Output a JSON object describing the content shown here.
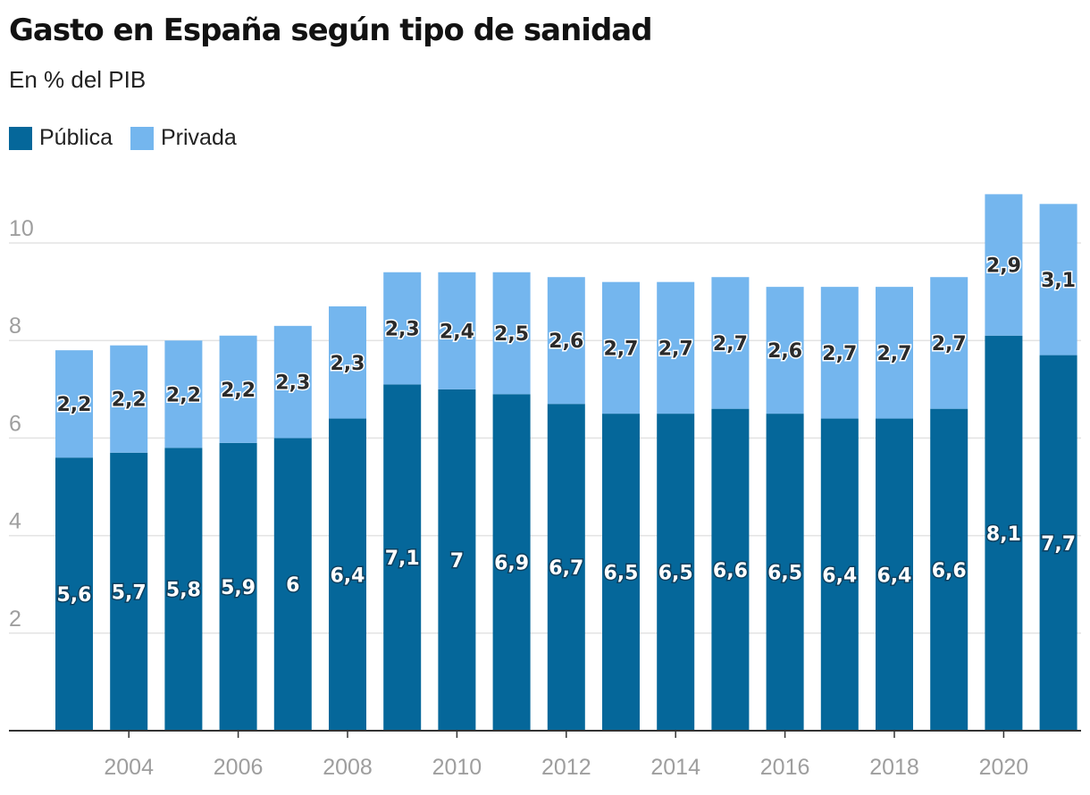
{
  "colors": {
    "publica": "#05679a",
    "privada": "#74b6ee",
    "grid": "#e3e3e3",
    "axis": "#333333",
    "tick": "#9e9e9e",
    "label_dark": "#2b2b2b",
    "label_light": "#ffffff"
  },
  "chart_data": {
    "type": "bar",
    "stacked": true,
    "title": "Gasto en España según tipo de sanidad",
    "subtitle": "En % del PIB",
    "xlabel": "",
    "ylabel": "",
    "ylim": [
      0,
      11
    ],
    "yticks": [
      2,
      4,
      6,
      8,
      10
    ],
    "xticks": [
      "2004",
      "2006",
      "2008",
      "2010",
      "2012",
      "2014",
      "2016",
      "2018",
      "2020"
    ],
    "legend_position": "top-left",
    "categories": [
      "2003",
      "2004",
      "2005",
      "2006",
      "2007",
      "2008",
      "2009",
      "2010",
      "2011",
      "2012",
      "2013",
      "2014",
      "2015",
      "2016",
      "2017",
      "2018",
      "2019",
      "2020",
      "2021"
    ],
    "series": [
      {
        "name": "Pública",
        "values": [
          5.6,
          5.7,
          5.8,
          5.9,
          6,
          6.4,
          7.1,
          7,
          6.9,
          6.7,
          6.5,
          6.5,
          6.6,
          6.5,
          6.4,
          6.4,
          6.6,
          8.1,
          7.7
        ],
        "labels": [
          "5,6",
          "5,7",
          "5,8",
          "5,9",
          "6",
          "6,4",
          "7,1",
          "7",
          "6,9",
          "6,7",
          "6,5",
          "6,5",
          "6,6",
          "6,5",
          "6,4",
          "6,4",
          "6,6",
          "8,1",
          "7,7"
        ]
      },
      {
        "name": "Privada",
        "values": [
          2.2,
          2.2,
          2.2,
          2.2,
          2.3,
          2.3,
          2.3,
          2.4,
          2.5,
          2.6,
          2.7,
          2.7,
          2.7,
          2.6,
          2.7,
          2.7,
          2.7,
          2.9,
          3.1
        ],
        "labels": [
          "2,2",
          "2,2",
          "2,2",
          "2,2",
          "2,3",
          "2,3",
          "2,3",
          "2,4",
          "2,5",
          "2,6",
          "2,7",
          "2,7",
          "2,7",
          "2,6",
          "2,7",
          "2,7",
          "2,7",
          "2,9",
          "3,1"
        ]
      }
    ]
  }
}
